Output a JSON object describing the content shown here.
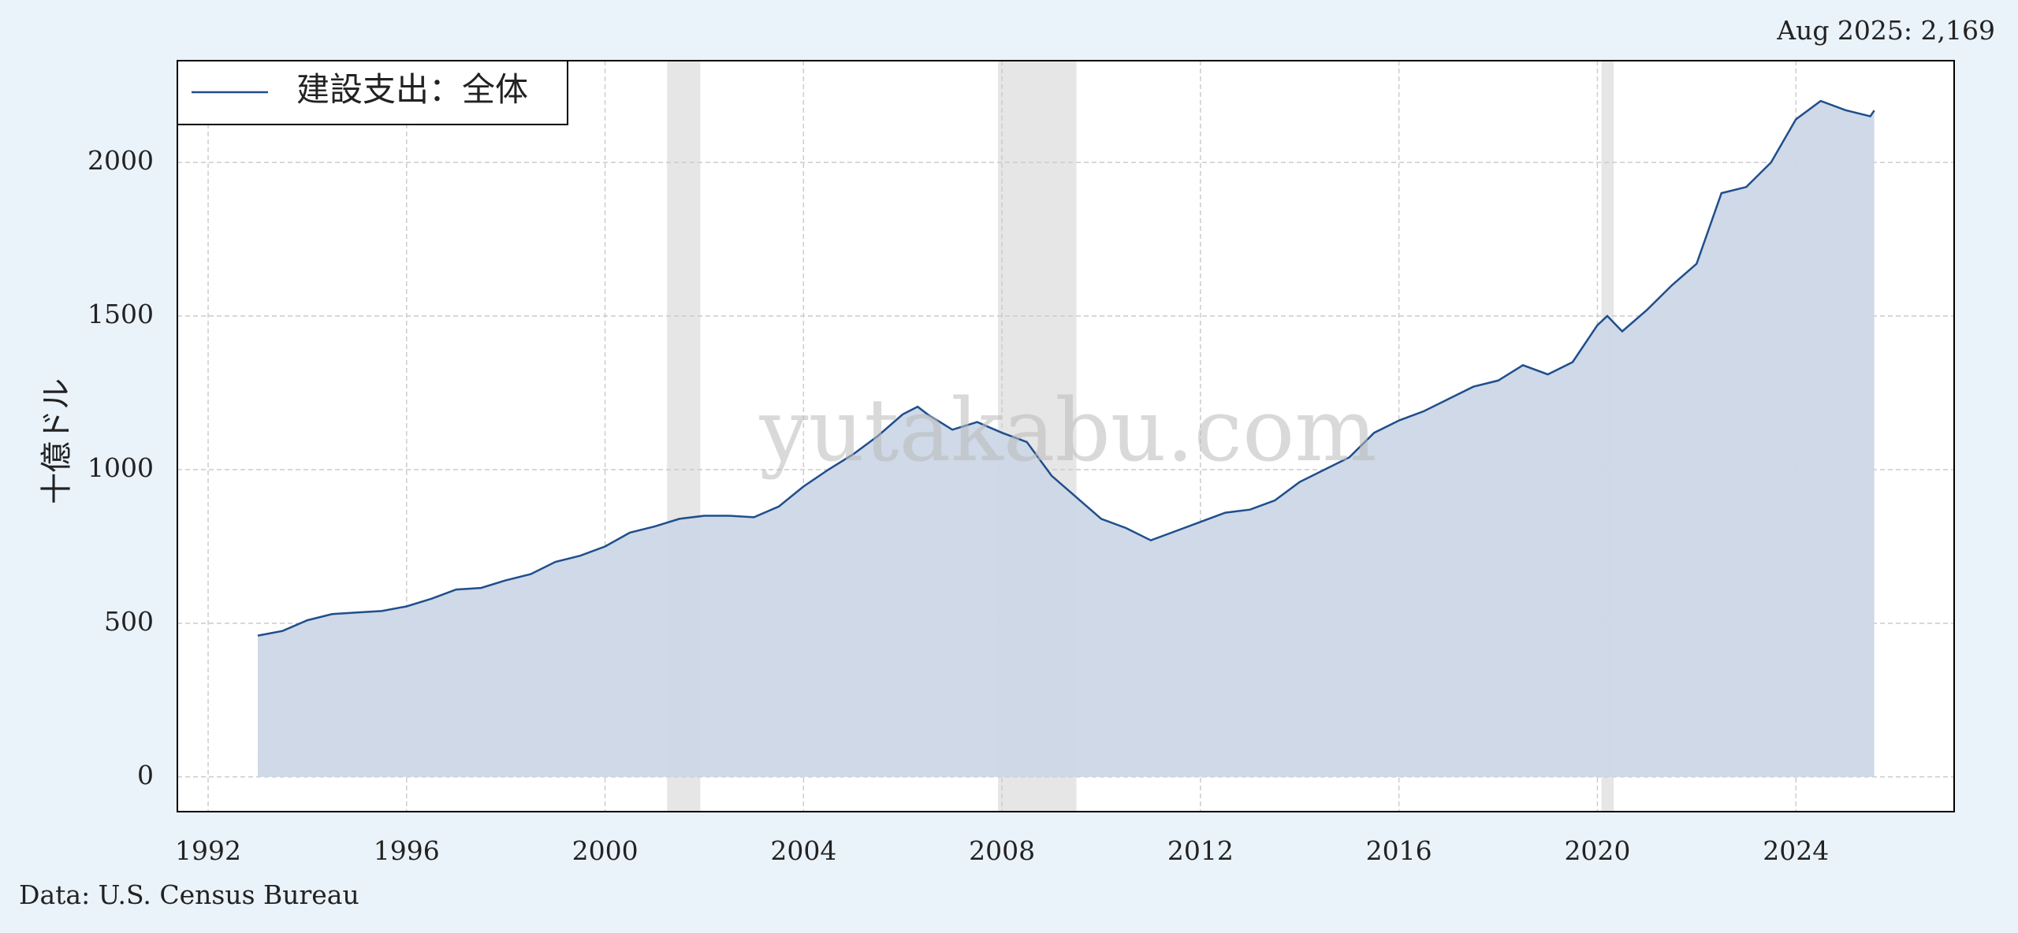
{
  "chart_data": {
    "type": "area",
    "title": "建設支出：全体",
    "y_label": "十億ドル",
    "annotation": "Aug 2025: 2,169",
    "watermark": "yutakabu.com",
    "source": "Data: U.S. Census Bureau",
    "series": [
      {
        "name": "建設支出：全体",
        "color": "#1f4e8c",
        "x": [
          1993.0,
          1993.5,
          1994.0,
          1994.5,
          1995.0,
          1995.5,
          1996.0,
          1996.5,
          1997.0,
          1997.5,
          1998.0,
          1998.5,
          1999.0,
          1999.5,
          2000.0,
          2000.5,
          2001.0,
          2001.5,
          2002.0,
          2002.5,
          2003.0,
          2003.5,
          2004.0,
          2004.5,
          2005.0,
          2005.5,
          2006.0,
          2006.3,
          2006.5,
          2007.0,
          2007.5,
          2008.0,
          2008.5,
          2009.0,
          2009.5,
          2010.0,
          2010.5,
          2011.0,
          2011.5,
          2012.0,
          2012.5,
          2013.0,
          2013.5,
          2014.0,
          2014.5,
          2015.0,
          2015.5,
          2016.0,
          2016.5,
          2017.0,
          2017.5,
          2018.0,
          2018.5,
          2019.0,
          2019.5,
          2020.0,
          2020.2,
          2020.5,
          2021.0,
          2021.5,
          2022.0,
          2022.5,
          2023.0,
          2023.5,
          2024.0,
          2024.5,
          2025.0,
          2025.5,
          2025.58
        ],
        "values": [
          460,
          475,
          510,
          530,
          535,
          540,
          555,
          580,
          610,
          615,
          640,
          660,
          700,
          720,
          750,
          795,
          815,
          840,
          850,
          850,
          845,
          880,
          945,
          1000,
          1050,
          1110,
          1180,
          1205,
          1180,
          1130,
          1155,
          1120,
          1090,
          980,
          910,
          840,
          810,
          770,
          800,
          830,
          860,
          870,
          900,
          960,
          1000,
          1040,
          1120,
          1160,
          1190,
          1230,
          1270,
          1290,
          1340,
          1310,
          1350,
          1470,
          1500,
          1450,
          1520,
          1600,
          1670,
          1900,
          1920,
          2000,
          2140,
          2200,
          2170,
          2150,
          2169
        ]
      }
    ],
    "recessions": [
      [
        2001.25,
        2001.92
      ],
      [
        2007.92,
        2009.5
      ],
      [
        2020.08,
        2020.33
      ]
    ],
    "xlim": [
      1991.38,
      2027.19
    ],
    "xticks": [
      1992,
      1996,
      2000,
      2004,
      2008,
      2012,
      2016,
      2020,
      2024
    ],
    "ylim": [
      -113,
      2331
    ],
    "yticks": [
      0,
      500,
      1000,
      1500,
      2000
    ],
    "grid": true,
    "legend": "upper left",
    "fill_color": "#ccd7e6",
    "recession_color": "#e6e6e6"
  }
}
